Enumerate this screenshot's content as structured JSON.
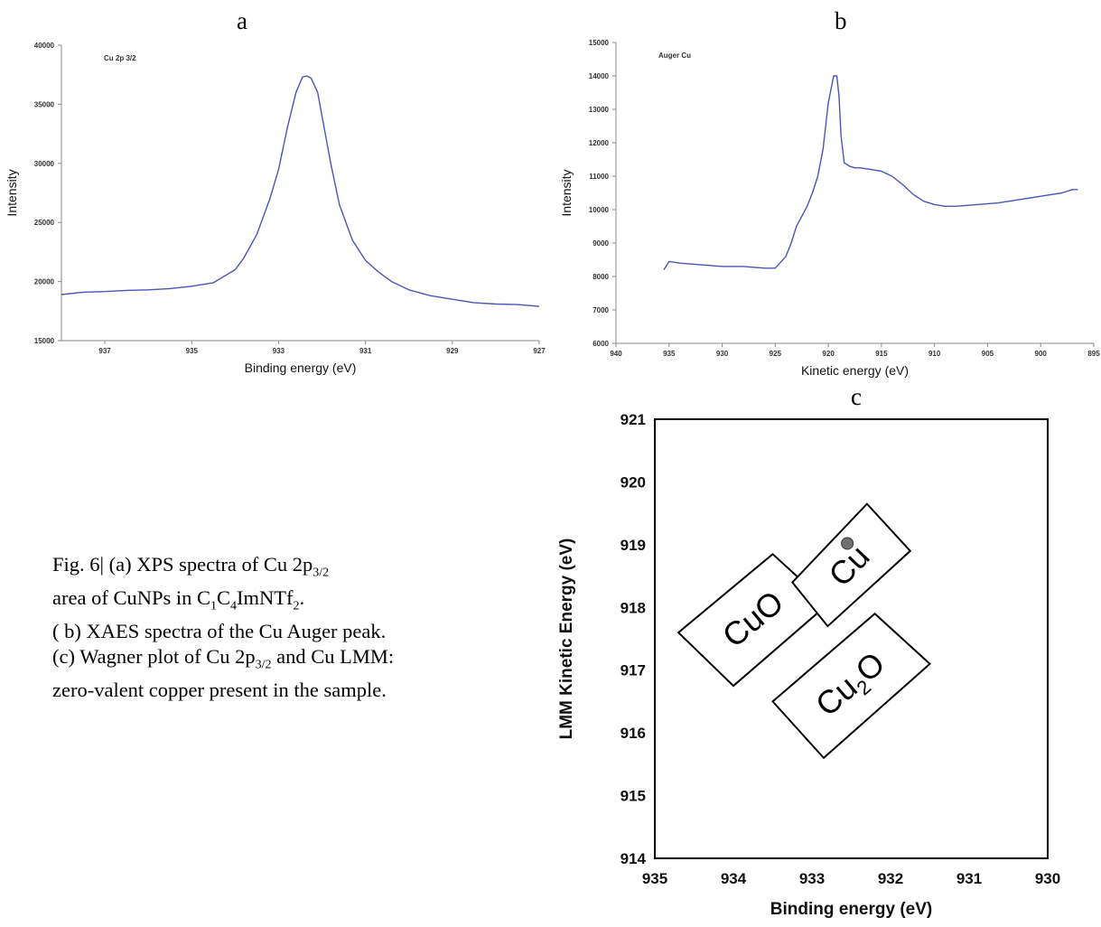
{
  "panels": {
    "a": "a",
    "b": "b",
    "c": "c"
  },
  "caption": {
    "line1": "Fig. 6| (a) XPS spectra of Cu 2p",
    "line1_sub": "3/2",
    "line2a": "area of CuNPs in C",
    "line2_sub1": "1",
    "line2b": "C",
    "line2_sub2": "4",
    "line2c": "ImNTf",
    "line2_sub3": "2",
    "line2d": ".",
    "line3": "( b) XAES spectra of the Cu Auger peak.",
    "line4a": "(c) Wagner plot of Cu 2p",
    "line4_sub": "3/2",
    "line4b": " and Cu LMM:",
    "line5": "zero-valent copper present in the sample."
  },
  "chart_data": [
    {
      "id": "a",
      "type": "line",
      "annotation": "Cu 2p 3/2",
      "xlabel": "Binding energy (eV)",
      "ylabel": "Intensity",
      "xlim": [
        938,
        927
      ],
      "ylim": [
        15000,
        40000
      ],
      "xticks": [
        937,
        935,
        933,
        931,
        929,
        927
      ],
      "yticks": [
        15000,
        20000,
        25000,
        30000,
        35000,
        40000
      ],
      "series": [
        {
          "color": "#4a55b8",
          "x": [
            938,
            937.5,
            937,
            936.5,
            936,
            935.5,
            935,
            934.5,
            934,
            933.8,
            933.5,
            933.2,
            933,
            932.8,
            932.6,
            932.45,
            932.35,
            932.25,
            932.1,
            932,
            931.8,
            931.6,
            931.3,
            931,
            930.7,
            930.4,
            930,
            929.5,
            929,
            928.5,
            928,
            927.5,
            927
          ],
          "y": [
            18900,
            19100,
            19150,
            19250,
            19300,
            19400,
            19600,
            19900,
            21000,
            22000,
            24000,
            27000,
            29500,
            33000,
            36000,
            37300,
            37400,
            37200,
            36000,
            34000,
            30000,
            26500,
            23500,
            21800,
            20800,
            20000,
            19300,
            18800,
            18500,
            18200,
            18100,
            18050,
            17900
          ]
        }
      ]
    },
    {
      "id": "b",
      "type": "line",
      "annotation": "Auger Cu",
      "xlabel": "Kinetic energy (eV)",
      "ylabel": "Intensity",
      "xlim": [
        940,
        895
      ],
      "ylim": [
        6000,
        15000
      ],
      "xticks": [
        940,
        935,
        930,
        925,
        920,
        915,
        910,
        905,
        900,
        895
      ],
      "yticks": [
        6000,
        7000,
        8000,
        9000,
        10000,
        11000,
        12000,
        13000,
        14000,
        15000
      ],
      "series": [
        {
          "color": "#4a55b8",
          "x": [
            935.5,
            935,
            934,
            932,
            930,
            928,
            926,
            925,
            924,
            923.5,
            923,
            922.5,
            922,
            921.5,
            921,
            920.5,
            920,
            919.5,
            919.2,
            919,
            918.8,
            918.5,
            918,
            917.5,
            917,
            916,
            915,
            914,
            913,
            912,
            911,
            910,
            909,
            908,
            906,
            904,
            902,
            900,
            898,
            897,
            896.5
          ],
          "y": [
            8200,
            8450,
            8400,
            8350,
            8300,
            8300,
            8250,
            8250,
            8600,
            9000,
            9500,
            9800,
            10100,
            10500,
            11000,
            11800,
            13200,
            14000,
            14000,
            13400,
            12200,
            11400,
            11300,
            11250,
            11250,
            11200,
            11150,
            11000,
            10750,
            10450,
            10250,
            10150,
            10100,
            10100,
            10150,
            10200,
            10300,
            10400,
            10500,
            10600,
            10600
          ]
        }
      ]
    },
    {
      "id": "c",
      "type": "scatter",
      "xlabel": "Binding energy (eV)",
      "ylabel": "LMM Kinetic Energy (eV)",
      "xlim": [
        935,
        930
      ],
      "ylim": [
        914,
        921
      ],
      "xticks": [
        935,
        934,
        933,
        932,
        931,
        930
      ],
      "yticks": [
        914,
        915,
        916,
        917,
        918,
        919,
        920,
        921
      ],
      "points": [
        {
          "x": 932.55,
          "y": 919.02,
          "color": "#707070"
        }
      ],
      "regions": [
        {
          "label": "CuO",
          "corners": [
            [
              934.7,
              917.6
            ],
            [
              933.5,
              918.85
            ],
            [
              932.8,
              918.05
            ],
            [
              934.0,
              916.75
            ]
          ]
        },
        {
          "label": "Cu",
          "corners": [
            [
              933.25,
              918.4
            ],
            [
              932.3,
              919.65
            ],
            [
              931.75,
              918.9
            ],
            [
              932.8,
              917.7
            ]
          ]
        },
        {
          "label": "Cu",
          "label_sub": "2",
          "label_tail": "O",
          "corners": [
            [
              933.5,
              916.5
            ],
            [
              932.2,
              917.9
            ],
            [
              931.5,
              917.1
            ],
            [
              932.85,
              915.6
            ]
          ]
        }
      ]
    }
  ]
}
